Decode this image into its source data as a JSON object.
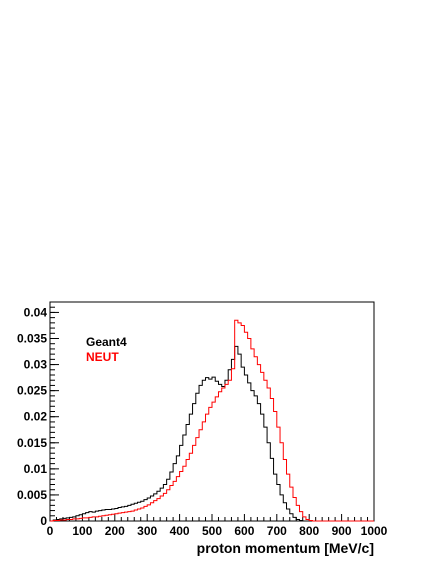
{
  "chart_data": {
    "type": "histogram",
    "xlabel": "proton momentum [MeV/c]",
    "ylabel": "",
    "xlim": [
      0,
      1000
    ],
    "ylim": [
      0,
      0.042
    ],
    "x_ticks": [
      "0",
      "100",
      "200",
      "300",
      "400",
      "500",
      "600",
      "700",
      "800",
      "900",
      "1000"
    ],
    "y_ticks": [
      "0",
      "0.005",
      "0.01",
      "0.015",
      "0.02",
      "0.025",
      "0.03",
      "0.035",
      "0.04"
    ],
    "grid": false,
    "legend_position": "top-left",
    "bin_width": 10,
    "series": [
      {
        "name": "Geant4",
        "color": "#000000",
        "values": [
          0.0,
          0.0002,
          0.0003,
          0.0004,
          0.0005,
          0.0006,
          0.0007,
          0.0008,
          0.001,
          0.0012,
          0.0014,
          0.0016,
          0.0018,
          0.0017,
          0.0019,
          0.002,
          0.0021,
          0.0022,
          0.0022,
          0.0023,
          0.0024,
          0.0026,
          0.0027,
          0.0028,
          0.003,
          0.0032,
          0.0034,
          0.0036,
          0.0038,
          0.0041,
          0.0044,
          0.0048,
          0.0052,
          0.0057,
          0.0063,
          0.007,
          0.008,
          0.0094,
          0.011,
          0.0125,
          0.0145,
          0.0165,
          0.0185,
          0.0205,
          0.0225,
          0.0245,
          0.026,
          0.027,
          0.0275,
          0.0272,
          0.0276,
          0.0268,
          0.0262,
          0.0258,
          0.027,
          0.029,
          0.031,
          0.0335,
          0.032,
          0.0295,
          0.028,
          0.0265,
          0.025,
          0.024,
          0.0225,
          0.0205,
          0.018,
          0.015,
          0.012,
          0.009,
          0.007,
          0.005,
          0.0035,
          0.0023,
          0.0014,
          0.0007,
          0.0003,
          0.0001,
          0.0,
          0.0,
          0.0,
          0.0,
          0.0,
          0.0,
          0.0,
          0.0,
          0.0,
          0.0,
          0.0,
          0.0,
          0.0,
          0.0,
          0.0,
          0.0,
          0.0,
          0.0,
          0.0,
          0.0,
          0.0,
          0.0
        ]
      },
      {
        "name": "NEUT",
        "color": "#ff0000",
        "values": [
          0.0,
          0.0001,
          0.0001,
          0.0002,
          0.0002,
          0.0003,
          0.0003,
          0.0004,
          0.0004,
          0.0005,
          0.0006,
          0.0006,
          0.0007,
          0.0008,
          0.0008,
          0.0009,
          0.001,
          0.0011,
          0.0012,
          0.0013,
          0.0014,
          0.0015,
          0.0016,
          0.0017,
          0.0018,
          0.0019,
          0.0021,
          0.0023,
          0.0025,
          0.0028,
          0.0031,
          0.0035,
          0.0039,
          0.0043,
          0.0048,
          0.0053,
          0.006,
          0.0068,
          0.0076,
          0.0085,
          0.0095,
          0.0105,
          0.0118,
          0.013,
          0.0145,
          0.016,
          0.0175,
          0.019,
          0.0205,
          0.0218,
          0.0228,
          0.0238,
          0.0248,
          0.0255,
          0.0262,
          0.027,
          0.0292,
          0.0385,
          0.038,
          0.0375,
          0.0362,
          0.035,
          0.033,
          0.0315,
          0.03,
          0.0285,
          0.027,
          0.0255,
          0.0235,
          0.021,
          0.018,
          0.015,
          0.0118,
          0.009,
          0.0065,
          0.0045,
          0.003,
          0.0018,
          0.0008,
          0.0003,
          0.0001,
          0.0,
          0.0,
          0.0,
          0.0,
          0.0,
          0.0,
          0.0,
          0.0,
          0.0,
          0.0,
          0.0,
          0.0,
          0.0,
          0.0,
          0.0,
          0.0,
          0.0,
          0.0,
          0.0
        ]
      }
    ]
  }
}
